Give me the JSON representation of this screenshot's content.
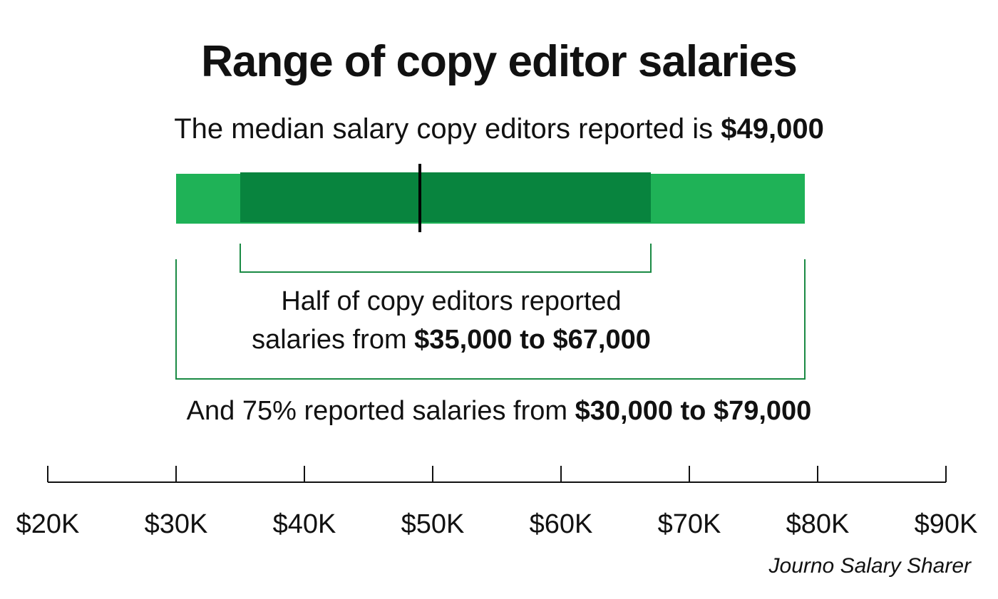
{
  "chart_data": {
    "type": "range",
    "title": "Range of copy editor salaries",
    "subtitle": {
      "prefix": "The median salary copy editors reported is ",
      "value": "$49,000"
    },
    "xlim": [
      20000,
      90000
    ],
    "ticks": [
      20000,
      30000,
      40000,
      50000,
      60000,
      70000,
      80000,
      90000
    ],
    "tick_labels": [
      "$20K",
      "$30K",
      "$40K",
      "$50K",
      "$60K",
      "$70K",
      "$80K",
      "$90K"
    ],
    "median": 49000,
    "ranges": {
      "outer_75_percent": {
        "low": 30000,
        "high": 79000
      },
      "inner_half": {
        "low": 35000,
        "high": 67000
      }
    },
    "annotations": {
      "inner": {
        "line1": "Half of copy editors reported",
        "line2_prefix": "salaries from ",
        "line2_value": "$35,000 to $67,000"
      },
      "outer": {
        "prefix": "And 75% reported salaries from ",
        "value": "$30,000 to $79,000"
      }
    },
    "source": "Journo Salary Sharer"
  },
  "colors": {
    "outer_band": "#1fb257",
    "inner_band": "#08843e",
    "bracket": "#1a8a44",
    "median_line": "#000000",
    "axis": "#111111"
  }
}
